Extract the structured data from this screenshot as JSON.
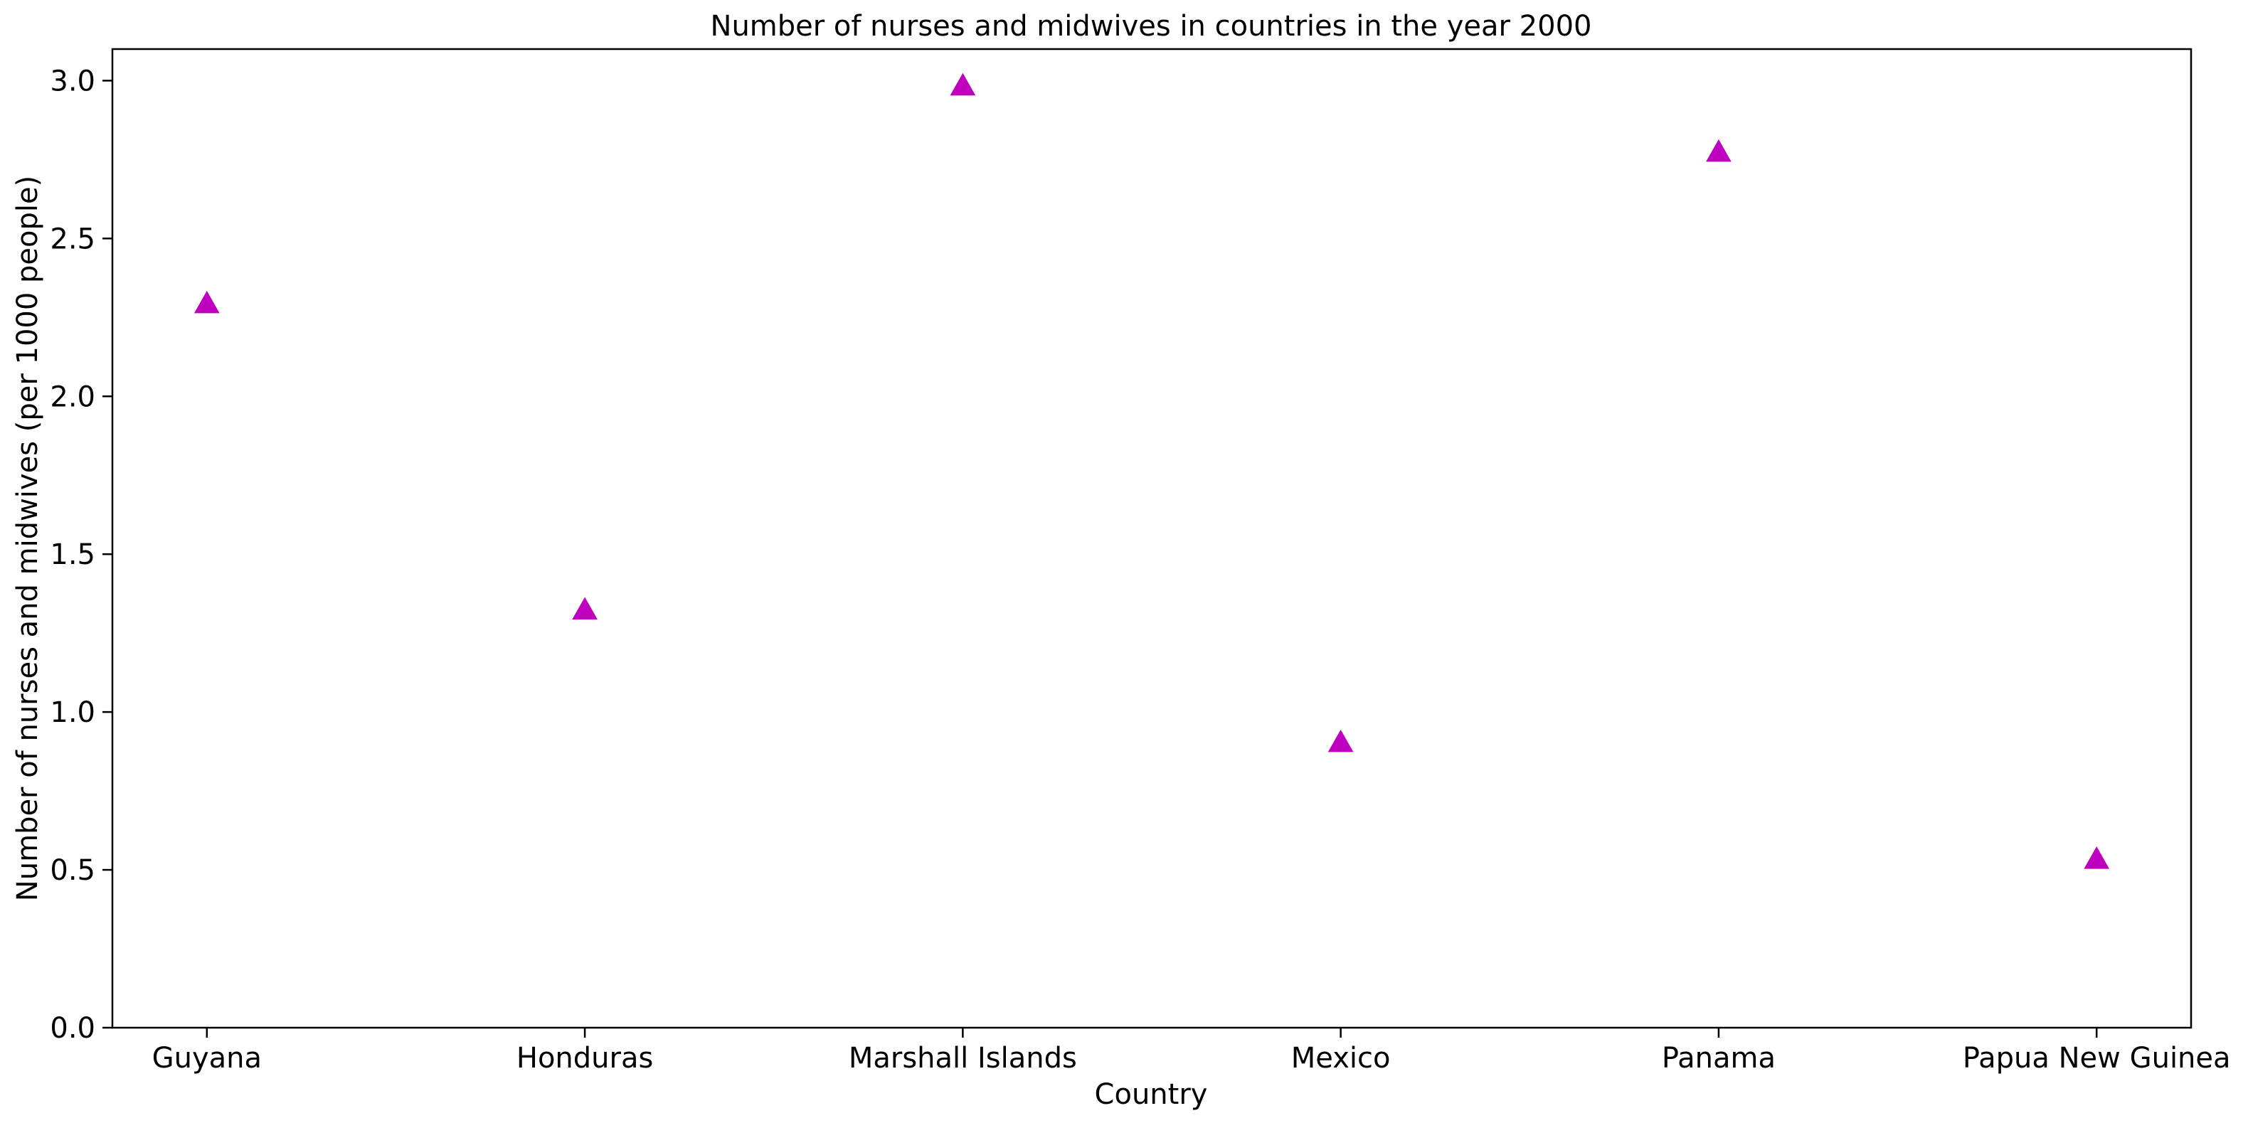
{
  "chart_data": {
    "type": "scatter",
    "title": "Number of nurses and midwives in countries in the year 2000",
    "xlabel": "Country",
    "ylabel": "Number of nurses and midwives (per 1000 people)",
    "categories": [
      "Guyana",
      "Honduras",
      "Marshall Islands",
      "Mexico",
      "Panama",
      "Papua New Guinea"
    ],
    "series": [
      {
        "values": [
          2.29,
          1.32,
          2.98,
          0.9,
          2.77,
          0.53
        ],
        "color": "#bf00bf",
        "marker": "triangle-up"
      }
    ],
    "ylim": [
      0,
      3.1
    ],
    "yticks": [
      0.0,
      0.5,
      1.0,
      1.5,
      2.0,
      2.5,
      3.0
    ],
    "ytick_labels": [
      "0.0",
      "0.5",
      "1.0",
      "1.5",
      "2.0",
      "2.5",
      "3.0"
    ],
    "grid": false,
    "legend": "none"
  }
}
